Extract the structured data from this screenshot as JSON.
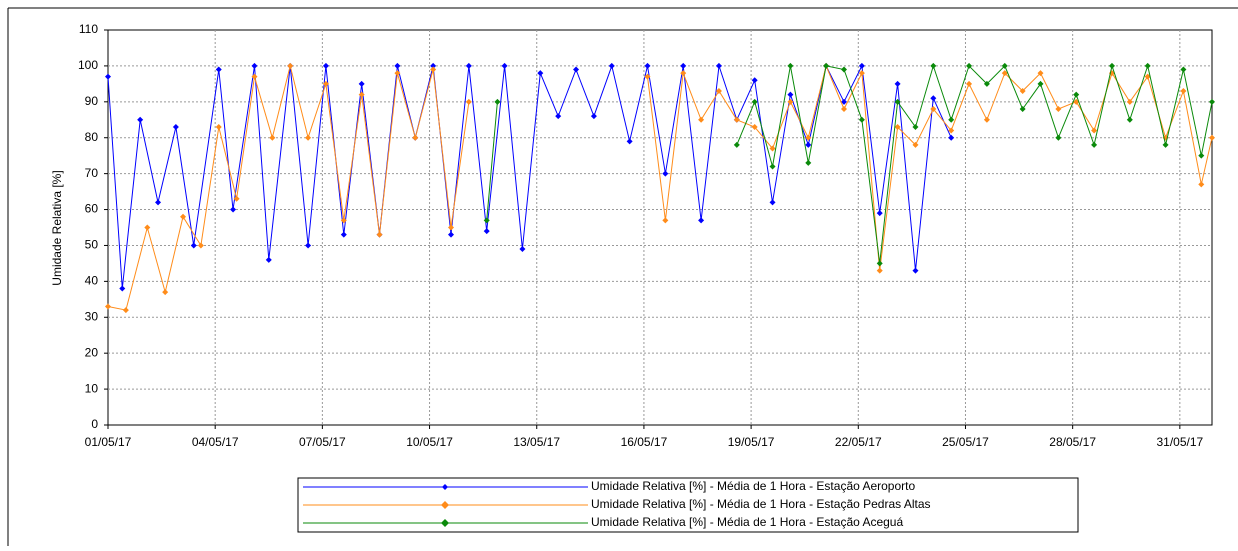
{
  "chart_data": {
    "type": "line",
    "y_label": "Umidade Relativa [%]",
    "ylim": [
      0,
      110
    ],
    "yticks": [
      0,
      10,
      20,
      30,
      40,
      50,
      60,
      70,
      80,
      90,
      100,
      110
    ],
    "xlim": [
      0,
      30.9
    ],
    "xticks": [
      {
        "value": 0,
        "label": "01/05/17"
      },
      {
        "value": 3,
        "label": "04/05/17"
      },
      {
        "value": 6,
        "label": "07/05/17"
      },
      {
        "value": 9,
        "label": "10/05/17"
      },
      {
        "value": 12,
        "label": "13/05/17"
      },
      {
        "value": 15,
        "label": "16/05/17"
      },
      {
        "value": 18,
        "label": "19/05/17"
      },
      {
        "value": 21,
        "label": "22/05/17"
      },
      {
        "value": 24,
        "label": "25/05/17"
      },
      {
        "value": 27,
        "label": "28/05/17"
      },
      {
        "value": 30,
        "label": "31/05/17"
      }
    ],
    "grid": true,
    "series": [
      {
        "name": "Umidade Relativa [%] - Média de 1 Hora - Estação Aeroporto",
        "color": "#0000ff",
        "x": [
          0,
          0.4,
          0.9,
          1.4,
          1.9,
          2.4,
          3.1,
          3.5,
          4.1,
          4.5,
          5.1,
          5.6,
          6.1,
          6.6,
          7.1,
          7.6,
          8.1,
          8.6,
          9.1,
          9.6,
          10.1,
          10.6,
          11.1,
          11.6,
          12.1,
          12.6,
          13.1,
          13.6,
          14.1,
          14.6,
          15.1,
          15.6,
          16.1,
          16.6,
          17.1,
          17.6,
          18.1,
          18.6,
          19.1,
          19.6,
          20.1,
          20.6,
          21.1,
          21.6,
          22.1,
          22.6,
          23.1,
          23.6
        ],
        "values": [
          97,
          38,
          85,
          62,
          83,
          50,
          99,
          60,
          100,
          46,
          100,
          50,
          100,
          53,
          95,
          53,
          100,
          80,
          100,
          53,
          100,
          54,
          100,
          49,
          98,
          86,
          99,
          86,
          100,
          79,
          100,
          70,
          100,
          57,
          100,
          85,
          96,
          62,
          92,
          78,
          100,
          90,
          100,
          59,
          95,
          43,
          91,
          80
        ]
      },
      {
        "name": "Umidade Relativa [%] - Média de 1 Hora - Estação Pedras Altas",
        "color": "#ff8c1a",
        "x": [
          0,
          0.5,
          1.1,
          1.6,
          2.1,
          2.6,
          3.1,
          3.6,
          4.1,
          4.6,
          5.1,
          5.6,
          6.1,
          6.6,
          7.1,
          7.6,
          8.1,
          8.6,
          9.1,
          9.6,
          10.1,
          12.5,
          15.1,
          15.6,
          16.1,
          16.6,
          17.1,
          17.6,
          18.1,
          18.6,
          19.1,
          19.6,
          20.1,
          20.6,
          21.1,
          21.6,
          22.1,
          22.6,
          23.1,
          23.6,
          24.1,
          24.6,
          25.1,
          25.6,
          26.1,
          26.6,
          27.1,
          27.6,
          28.1,
          28.6,
          29.1,
          29.6,
          30.1,
          30.6,
          30.9
        ],
        "values": [
          33,
          32,
          55,
          37,
          58,
          50,
          83,
          63,
          97,
          80,
          100,
          80,
          95,
          57,
          92,
          53,
          98,
          80,
          99,
          55,
          90,
          null,
          97,
          57,
          98,
          85,
          93,
          85,
          83,
          77,
          90,
          80,
          100,
          88,
          98,
          43,
          83,
          78,
          88,
          82,
          95,
          85,
          98,
          93,
          98,
          88,
          90,
          82,
          98,
          90,
          97,
          80,
          93,
          67,
          80
        ]
      },
      {
        "name": "Umidade Relativa [%] - Média de 1 Hora - Estação Aceguá",
        "color": "#0a8a0a",
        "x": [
          10.6,
          10.9,
          14,
          17.6,
          18.1,
          18.6,
          19.1,
          19.6,
          20.1,
          20.6,
          21.1,
          21.6,
          22.1,
          22.6,
          23.1,
          23.6,
          24.1,
          24.6,
          25.1,
          25.6,
          26.1,
          26.6,
          27.1,
          27.6,
          28.1,
          28.6,
          29.1,
          29.6,
          30.1,
          30.6,
          30.9
        ],
        "values": [
          57,
          90,
          null,
          78,
          90,
          72,
          100,
          73,
          100,
          99,
          85,
          45,
          90,
          83,
          100,
          85,
          100,
          95,
          100,
          88,
          95,
          80,
          92,
          78,
          100,
          85,
          100,
          78,
          99,
          75,
          90
        ]
      }
    ]
  }
}
